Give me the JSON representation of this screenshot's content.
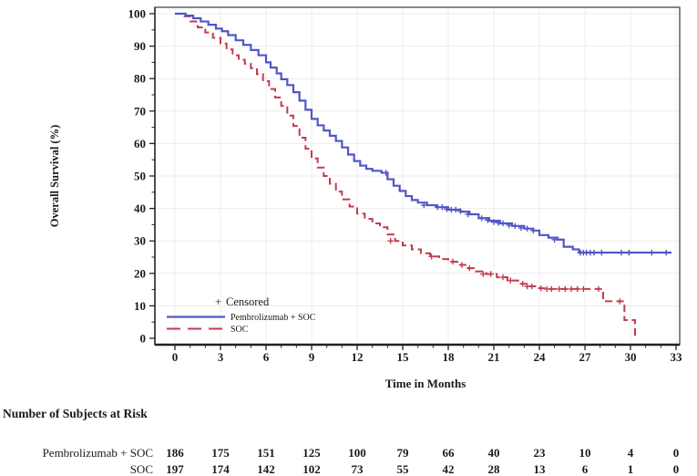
{
  "figure": {
    "background": "#ffffff",
    "y_axis_label": "Overall Survival (%)",
    "x_axis_label": "Time in Months",
    "x_ticks": [
      0,
      3,
      6,
      9,
      12,
      15,
      18,
      21,
      24,
      27,
      30,
      33
    ],
    "y_ticks": [
      0,
      10,
      20,
      30,
      40,
      50,
      60,
      70,
      80,
      90,
      100
    ],
    "grid_color": "#ececec",
    "axis_color": "#2f2f2f",
    "text_color": "#1a1a1a"
  },
  "legend": {
    "censored_symbol": "+",
    "censored_label": "Censored",
    "items": [
      {
        "label": "Pembrolizumab + SOC",
        "color": "#5156c6",
        "line_style": "solid"
      },
      {
        "label": "SOC",
        "color": "#c23b50",
        "line_style": "dashed"
      }
    ]
  },
  "risk_table": {
    "title": "Number of Subjects at Risk",
    "time_points": [
      0,
      3,
      6,
      9,
      12,
      15,
      18,
      21,
      24,
      27,
      30,
      33
    ],
    "rows": [
      {
        "label": "Pembrolizumab + SOC",
        "values": [
          186,
          175,
          151,
          125,
          100,
          79,
          66,
          40,
          23,
          10,
          4,
          0
        ]
      },
      {
        "label": "SOC",
        "values": [
          197,
          174,
          142,
          102,
          73,
          55,
          42,
          28,
          13,
          6,
          1,
          0
        ]
      }
    ]
  },
  "chart_data": {
    "type": "line",
    "subtype": "kaplan_meier_step",
    "title": "",
    "xlabel": "Time in Months",
    "ylabel": "Overall Survival (%)",
    "xlim": [
      0,
      33
    ],
    "ylim": [
      0,
      100
    ],
    "x_major_tick": 3,
    "x_minor_tick": 1,
    "y_major_tick": 10,
    "y_minor_tick": 5,
    "grid": true,
    "legend_position": "inside-bottom-left",
    "series": [
      {
        "name": "Pembrolizumab + SOC",
        "color": "#5156c6",
        "style": "solid",
        "steps": [
          [
            0,
            100
          ],
          [
            0.7,
            99.4
          ],
          [
            1.2,
            98.6
          ],
          [
            1.7,
            97.6
          ],
          [
            2.2,
            96.6
          ],
          [
            2.7,
            95.4
          ],
          [
            3.1,
            94.6
          ],
          [
            3.5,
            93.4
          ],
          [
            4,
            91.8
          ],
          [
            4.5,
            90.4
          ],
          [
            5,
            88.8
          ],
          [
            5.5,
            87.2
          ],
          [
            6,
            85
          ],
          [
            6.3,
            83.4
          ],
          [
            6.7,
            81.6
          ],
          [
            7,
            79.8
          ],
          [
            7.4,
            78
          ],
          [
            7.8,
            75.8
          ],
          [
            8.2,
            73.2
          ],
          [
            8.6,
            70.4
          ],
          [
            9,
            67.6
          ],
          [
            9.4,
            65.6
          ],
          [
            9.8,
            64
          ],
          [
            10.2,
            62.4
          ],
          [
            10.6,
            60.8
          ],
          [
            11,
            58.8
          ],
          [
            11.4,
            56.6
          ],
          [
            11.8,
            54.6
          ],
          [
            12.2,
            53.2
          ],
          [
            12.6,
            52.2
          ],
          [
            13,
            51.6
          ],
          [
            13.6,
            51
          ],
          [
            14,
            49
          ],
          [
            14.4,
            47
          ],
          [
            14.8,
            45.4
          ],
          [
            15.2,
            43.8
          ],
          [
            15.6,
            42.6
          ],
          [
            16,
            41.8
          ],
          [
            16.6,
            41
          ],
          [
            17.2,
            40.4
          ],
          [
            18,
            39.6
          ],
          [
            18.8,
            39
          ],
          [
            19.4,
            38.2
          ],
          [
            20,
            37
          ],
          [
            20.7,
            36.2
          ],
          [
            21.4,
            35.4
          ],
          [
            22.2,
            34.6
          ],
          [
            23,
            33.8
          ],
          [
            23.6,
            33.2
          ],
          [
            24,
            31.8
          ],
          [
            24.6,
            31
          ],
          [
            25.2,
            30.4
          ],
          [
            25.6,
            28.2
          ],
          [
            26.2,
            27.4
          ],
          [
            26.6,
            26.4
          ],
          [
            32.7,
            26.4
          ]
        ],
        "censor_marks": [
          [
            13.9,
            51
          ],
          [
            16.4,
            41
          ],
          [
            17.3,
            40.4
          ],
          [
            17.6,
            40.4
          ],
          [
            17.9,
            39.8
          ],
          [
            18.2,
            39.6
          ],
          [
            18.5,
            39.6
          ],
          [
            18.8,
            39.2
          ],
          [
            19.3,
            38.2
          ],
          [
            20.2,
            37
          ],
          [
            20.6,
            36.4
          ],
          [
            21,
            35.8
          ],
          [
            21.3,
            35.6
          ],
          [
            21.6,
            35.4
          ],
          [
            22,
            34.8
          ],
          [
            22.4,
            34.6
          ],
          [
            22.8,
            34
          ],
          [
            23.2,
            33.8
          ],
          [
            23.6,
            33.2
          ],
          [
            25,
            30.4
          ],
          [
            26.7,
            26.4
          ],
          [
            26.9,
            26.4
          ],
          [
            27.1,
            26.4
          ],
          [
            27.35,
            26.4
          ],
          [
            27.6,
            26.4
          ],
          [
            28.1,
            26.4
          ],
          [
            29.4,
            26.4
          ],
          [
            29.9,
            26.4
          ],
          [
            31.4,
            26.4
          ],
          [
            32.35,
            26.4
          ]
        ]
      },
      {
        "name": "SOC",
        "color": "#c23b50",
        "style": "dashed",
        "dash": [
          8,
          4.5
        ],
        "steps": [
          [
            0,
            100
          ],
          [
            0.5,
            99.2
          ],
          [
            1,
            97.6
          ],
          [
            1.5,
            95.8
          ],
          [
            2,
            94.2
          ],
          [
            2.5,
            92.6
          ],
          [
            3,
            90.8
          ],
          [
            3.4,
            89
          ],
          [
            3.8,
            87.2
          ],
          [
            4.2,
            85.8
          ],
          [
            4.6,
            84.6
          ],
          [
            5,
            83.2
          ],
          [
            5.4,
            81.4
          ],
          [
            5.8,
            79.2
          ],
          [
            6.2,
            76.8
          ],
          [
            6.6,
            74.2
          ],
          [
            7,
            71.6
          ],
          [
            7.4,
            68.6
          ],
          [
            7.8,
            65.4
          ],
          [
            8.2,
            61.8
          ],
          [
            8.6,
            58.4
          ],
          [
            9,
            55.4
          ],
          [
            9.4,
            52.6
          ],
          [
            9.8,
            50
          ],
          [
            10.2,
            47.6
          ],
          [
            10.6,
            45.2
          ],
          [
            11,
            42.8
          ],
          [
            11.5,
            40.6
          ],
          [
            12,
            38.4
          ],
          [
            12.5,
            36.8
          ],
          [
            13,
            35.4
          ],
          [
            13.5,
            34.2
          ],
          [
            14,
            32
          ],
          [
            14.5,
            30
          ],
          [
            15,
            28.6
          ],
          [
            15.6,
            27.4
          ],
          [
            16.2,
            26.2
          ],
          [
            16.8,
            25.2
          ],
          [
            17.4,
            24.4
          ],
          [
            18,
            23.6
          ],
          [
            18.6,
            22.6
          ],
          [
            19.2,
            21.6
          ],
          [
            19.8,
            20.6
          ],
          [
            20.5,
            19.8
          ],
          [
            21.2,
            18.8
          ],
          [
            21.9,
            17.8
          ],
          [
            22.6,
            16.8
          ],
          [
            23.3,
            16
          ],
          [
            24,
            15.4
          ],
          [
            24.5,
            15.2
          ],
          [
            28.2,
            11.4
          ],
          [
            29.6,
            5.6
          ],
          [
            30.3,
            0
          ]
        ],
        "censor_marks": [
          [
            14.2,
            30
          ],
          [
            16.9,
            25.2
          ],
          [
            18.3,
            23.6
          ],
          [
            18.9,
            22.6
          ],
          [
            19.4,
            21.6
          ],
          [
            20.3,
            19.8
          ],
          [
            20.8,
            19.8
          ],
          [
            21.6,
            18.8
          ],
          [
            22.1,
            17.8
          ],
          [
            22.9,
            16.8
          ],
          [
            23.2,
            16
          ],
          [
            23.5,
            16
          ],
          [
            24.1,
            15.4
          ],
          [
            24.5,
            15.2
          ],
          [
            24.8,
            15.2
          ],
          [
            25.3,
            15.2
          ],
          [
            25.7,
            15.2
          ],
          [
            26.1,
            15.2
          ],
          [
            26.5,
            15.2
          ],
          [
            26.9,
            15.2
          ],
          [
            27.9,
            15.2
          ],
          [
            29.3,
            11.4
          ]
        ]
      }
    ]
  }
}
